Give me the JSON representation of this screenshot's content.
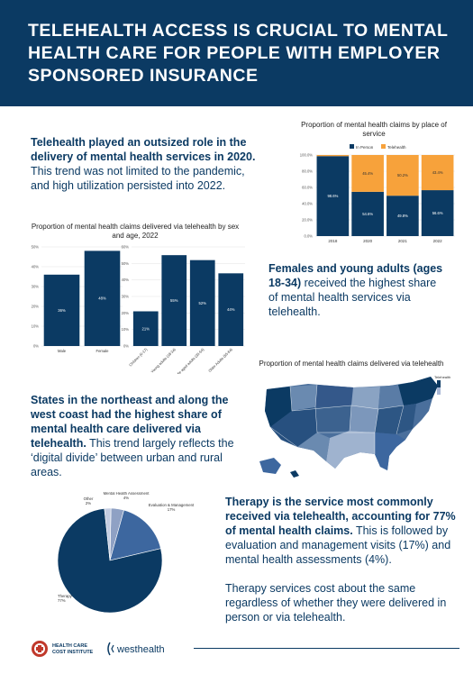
{
  "header": {
    "title": "TELEHEALTH ACCESS IS CRUCIAL TO MENTAL HEALTH CARE FOR PEOPLE WITH EMPLOYER SPONSORED INSURANCE"
  },
  "section1": {
    "bold": "Telehealth played an outsized role in the delivery of mental health services in 2020.",
    "rest": " This trend was not limited to the pandemic, and high utilization persisted into 2022."
  },
  "section2": {
    "bold": "Females and young adults (ages 18-34)",
    "rest": " received the highest share of mental health services via telehealth."
  },
  "section3": {
    "bold": "States in the northeast and along the west coast had the highest share of mental health care delivered via telehealth.",
    "rest": " This trend largely reflects the ‘digital divide’ between urban and rural areas."
  },
  "section4": {
    "bold": "Therapy is the service most commonly received via telehealth, accounting for 77% of mental health claims.",
    "rest": " This is followed by evaluation and management visits (17%) and mental health assessments (4%).",
    "para2": "Therapy services cost about the same regardless of whether they were delivered in person or via telehealth."
  },
  "footer": {
    "logo1_line1": "HEALTH CARE",
    "logo1_line2": "COST INSTITUTE",
    "logo2": "westhealth"
  },
  "colors": {
    "navy": "#0b3a63",
    "orange": "#f7a23b",
    "mid_blue": "#3d679f",
    "light_blue": "#a9b8d6"
  },
  "map": {
    "title": "Proportion of mental health claims delivered via telehealth",
    "legend_label": "Telehealth"
  },
  "chart_data": [
    {
      "type": "bar",
      "title": "Proportion of mental health claims by place of service",
      "stacked": true,
      "categories": [
        "2018",
        "2020",
        "2021",
        "2022"
      ],
      "series": [
        {
          "name": "In Person",
          "values": [
            98.6,
            54.6,
            49.8,
            56.6
          ],
          "labels": [
            "98.6%",
            "54.6%",
            "49.8%",
            "56.6%"
          ],
          "color": "#0b3a63"
        },
        {
          "name": "Telehealth",
          "values": [
            1.4,
            45.4,
            50.2,
            43.4
          ],
          "labels": [
            "",
            "45.4%",
            "50.2%",
            "43.4%"
          ],
          "color": "#f7a23b"
        }
      ],
      "yticks": [
        "0.0%",
        "20.0%",
        "40.0%",
        "60.0%",
        "80.0%",
        "100.0%"
      ],
      "ylim": [
        0,
        100
      ],
      "legend": "top"
    },
    {
      "type": "bar",
      "title": "Proportion of mental health claims delivered via telehealth by sex and age, 2022",
      "panels": [
        {
          "categories": [
            "Male",
            "Female"
          ],
          "values": [
            36,
            48
          ],
          "labels": [
            "36%",
            "48%"
          ],
          "yticks": [
            "0%",
            "10%",
            "20%",
            "30%",
            "40%",
            "50%"
          ],
          "ylim": [
            0,
            50
          ]
        },
        {
          "categories": [
            "Children (0-17)",
            "Young adults (18-34)",
            "Middle aged adults (35-54)",
            "Older Adults (55-64)"
          ],
          "values": [
            21,
            55,
            52,
            44
          ],
          "labels": [
            "21%",
            "55%",
            "52%",
            "44%"
          ],
          "yticks": [
            "0%",
            "10%",
            "20%",
            "30%",
            "40%",
            "50%",
            "60%"
          ],
          "ylim": [
            0,
            60
          ]
        }
      ],
      "color": "#0b3a63"
    },
    {
      "type": "pie",
      "labels": [
        "Therapy",
        "Evaluation & Management",
        "Mental Health Assessment",
        "Other"
      ],
      "values": [
        77,
        17,
        4,
        2
      ],
      "value_labels": [
        "77%",
        "17%",
        "4%",
        "2%"
      ],
      "colors": [
        "#0b3a63",
        "#3d679f",
        "#8fa1c4",
        "#c4cde2"
      ]
    }
  ]
}
